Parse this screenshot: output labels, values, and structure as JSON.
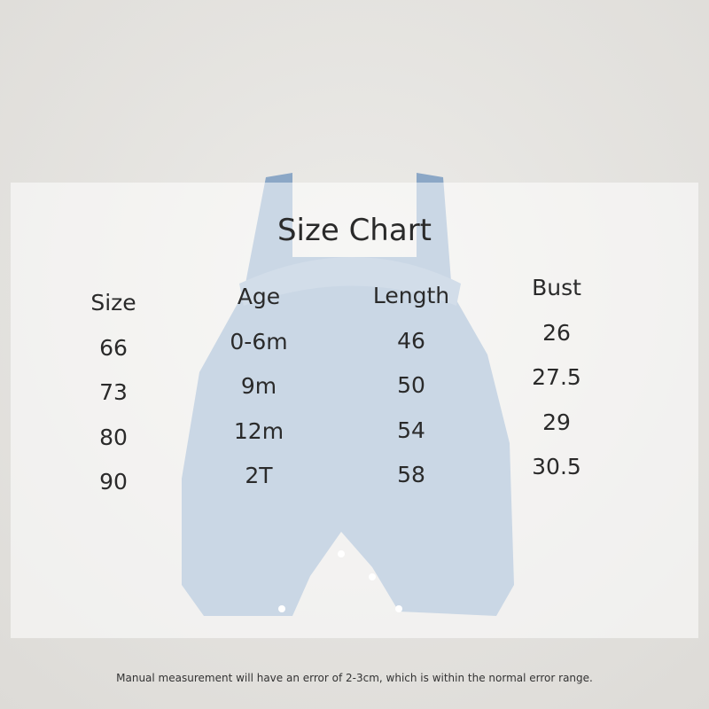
{
  "title": "Size Chart",
  "columns": [
    {
      "header": "Size",
      "values": [
        "66",
        "73",
        "80",
        "90"
      ]
    },
    {
      "header": "Age",
      "values": [
        "0-6m",
        "9m",
        "12m",
        "2T"
      ]
    },
    {
      "header": "Length",
      "values": [
        "46",
        "50",
        "54",
        "58"
      ]
    },
    {
      "header": "Bust",
      "values": [
        "26",
        "27.5",
        "29",
        "30.5"
      ]
    }
  ],
  "note": "Manual measurement will have an error of 2-3cm, which is within the normal error range.",
  "colors": {
    "garment": "#8ba7c6",
    "background": "#e4e2df"
  }
}
